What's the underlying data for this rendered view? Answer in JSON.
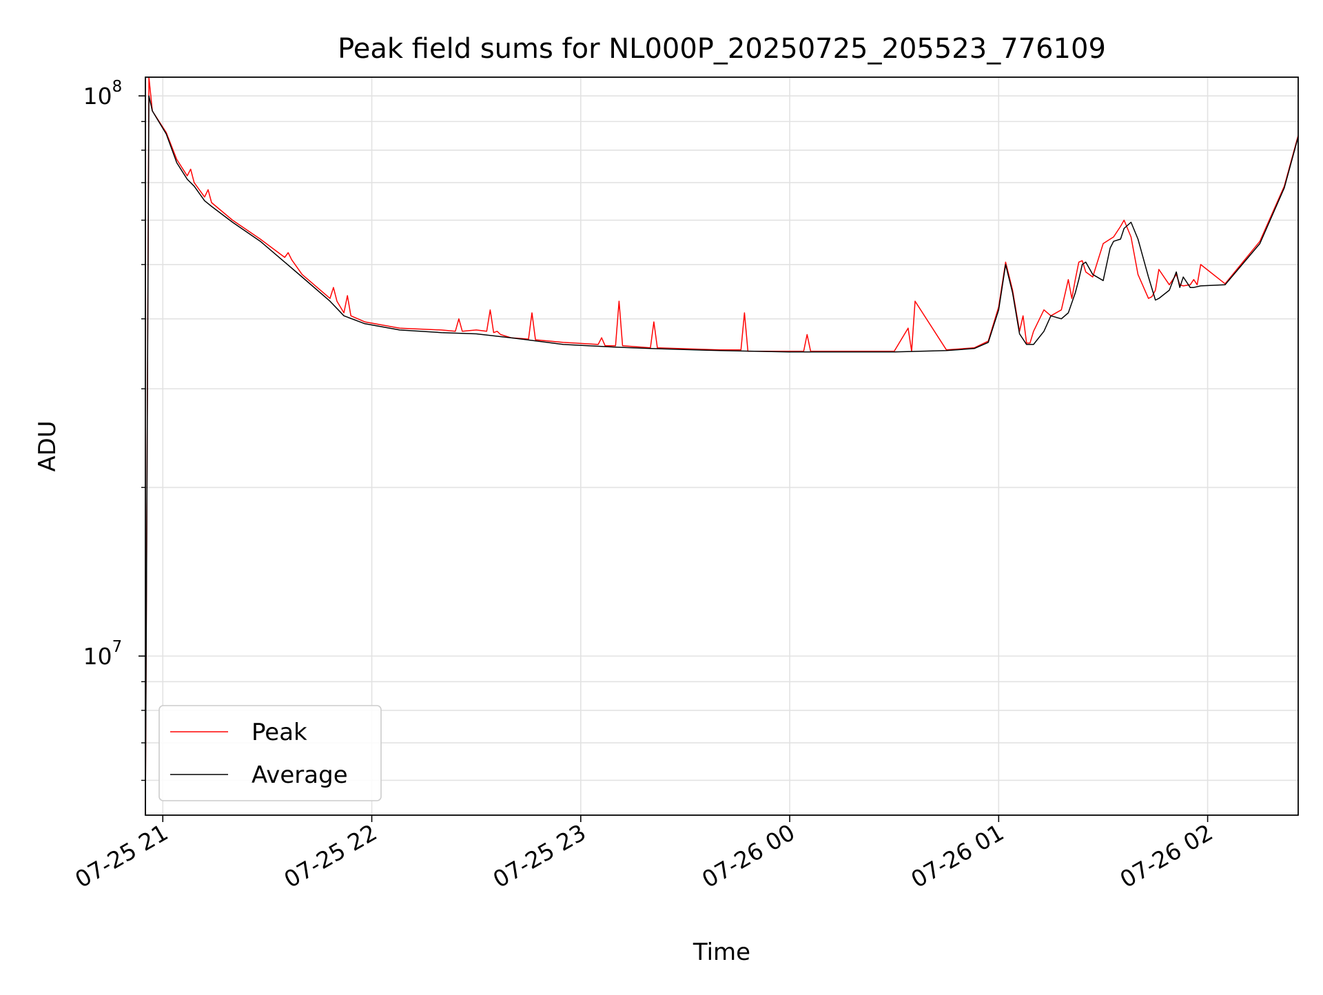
{
  "chart_data": {
    "type": "line",
    "title": "Peak field sums for NL000P_20250725_205523_776109",
    "xlabel": "Time",
    "ylabel": "ADU",
    "yscale": "log",
    "ylim": [
      5200000,
      108000000
    ],
    "xlim": [
      "2025-07-25 20:55",
      "2025-07-26 02:26"
    ],
    "grid": true,
    "legend_position": "lower-left",
    "x_ticks": [
      {
        "x": "2025-07-25 21:00",
        "label": "07-25 21"
      },
      {
        "x": "2025-07-25 22:00",
        "label": "07-25 22"
      },
      {
        "x": "2025-07-25 23:00",
        "label": "07-25 23"
      },
      {
        "x": "2025-07-26 00:00",
        "label": "07-26 00"
      },
      {
        "x": "2025-07-26 01:00",
        "label": "07-26 01"
      },
      {
        "x": "2025-07-26 02:00",
        "label": "07-26 02"
      }
    ],
    "y_ticks": [
      {
        "value": 10000000,
        "base": "10",
        "exp": "7"
      },
      {
        "value": 100000000,
        "base": "10",
        "exp": "8"
      }
    ],
    "series": [
      {
        "name": "Peak",
        "color": "#ff0000",
        "x": [
          "2025-07-25 20:55",
          "2025-07-25 20:56",
          "2025-07-25 20:57",
          "2025-07-25 21:01",
          "2025-07-25 21:04",
          "2025-07-25 21:07",
          "2025-07-25 21:08",
          "2025-07-25 21:09",
          "2025-07-25 21:12",
          "2025-07-25 21:13",
          "2025-07-25 21:14",
          "2025-07-25 21:20",
          "2025-07-25 21:28",
          "2025-07-25 21:35",
          "2025-07-25 21:36",
          "2025-07-25 21:37",
          "2025-07-25 21:40",
          "2025-07-25 21:48",
          "2025-07-25 21:49",
          "2025-07-25 21:50",
          "2025-07-25 21:52",
          "2025-07-25 21:53",
          "2025-07-25 21:54",
          "2025-07-25 21:58",
          "2025-07-25 22:08",
          "2025-07-25 22:20",
          "2025-07-25 22:24",
          "2025-07-25 22:25",
          "2025-07-25 22:26",
          "2025-07-25 22:30",
          "2025-07-25 22:33",
          "2025-07-25 22:34",
          "2025-07-25 22:35",
          "2025-07-25 22:36",
          "2025-07-25 22:37",
          "2025-07-25 22:40",
          "2025-07-25 22:45",
          "2025-07-25 22:46",
          "2025-07-25 22:47",
          "2025-07-25 22:55",
          "2025-07-25 23:05",
          "2025-07-25 23:06",
          "2025-07-25 23:07",
          "2025-07-25 23:10",
          "2025-07-25 23:11",
          "2025-07-25 23:12",
          "2025-07-25 23:20",
          "2025-07-25 23:21",
          "2025-07-25 23:22",
          "2025-07-25 23:40",
          "2025-07-25 23:46",
          "2025-07-25 23:47",
          "2025-07-25 23:48",
          "2025-07-26 00:04",
          "2025-07-26 00:05",
          "2025-07-26 00:06",
          "2025-07-26 00:30",
          "2025-07-26 00:34",
          "2025-07-26 00:35",
          "2025-07-26 00:36",
          "2025-07-26 00:45",
          "2025-07-26 00:53",
          "2025-07-26 00:57",
          "2025-07-26 01:00",
          "2025-07-26 01:02",
          "2025-07-26 01:04",
          "2025-07-26 01:06",
          "2025-07-26 01:07",
          "2025-07-26 01:08",
          "2025-07-26 01:09",
          "2025-07-26 01:10",
          "2025-07-26 01:13",
          "2025-07-26 01:15",
          "2025-07-26 01:18",
          "2025-07-26 01:20",
          "2025-07-26 01:21",
          "2025-07-26 01:22",
          "2025-07-26 01:23",
          "2025-07-26 01:24",
          "2025-07-26 01:25",
          "2025-07-26 01:27",
          "2025-07-26 01:30",
          "2025-07-26 01:32",
          "2025-07-26 01:33",
          "2025-07-26 01:35",
          "2025-07-26 01:36",
          "2025-07-26 01:38",
          "2025-07-26 01:40",
          "2025-07-26 01:43",
          "2025-07-26 01:44",
          "2025-07-26 01:45",
          "2025-07-26 01:46",
          "2025-07-26 01:49",
          "2025-07-26 01:51",
          "2025-07-26 01:52",
          "2025-07-26 01:53",
          "2025-07-26 01:55",
          "2025-07-26 01:56",
          "2025-07-26 01:57",
          "2025-07-26 01:58",
          "2025-07-26 02:05",
          "2025-07-26 02:15",
          "2025-07-26 02:22",
          "2025-07-26 02:26"
        ],
        "y": [
          5200000,
          108000000,
          94000000,
          86000000,
          77000000,
          72000000,
          74000000,
          70000000,
          66000000,
          68000000,
          64500000,
          60000000,
          55500000,
          51500000,
          52500000,
          51000000,
          48000000,
          43500000,
          45500000,
          43000000,
          41000000,
          44000000,
          40500000,
          39500000,
          38500000,
          38200000,
          38000000,
          40000000,
          38000000,
          38200000,
          38000000,
          41500000,
          37800000,
          38000000,
          37500000,
          37000000,
          36800000,
          41000000,
          36700000,
          36300000,
          36000000,
          37000000,
          35800000,
          35800000,
          43000000,
          35800000,
          35500000,
          39500000,
          35500000,
          35200000,
          35200000,
          41000000,
          35000000,
          35000000,
          37500000,
          35000000,
          35000000,
          38500000,
          35000000,
          43000000,
          35200000,
          35500000,
          36500000,
          42000000,
          50500000,
          45000000,
          38000000,
          40500000,
          36200000,
          36200000,
          38000000,
          41500000,
          40500000,
          41500000,
          47000000,
          43500000,
          47000000,
          50500000,
          50800000,
          48500000,
          47500000,
          54500000,
          55500000,
          56000000,
          58500000,
          60000000,
          56000000,
          48000000,
          43500000,
          43800000,
          45000000,
          49000000,
          46000000,
          48000000,
          46000000,
          45800000,
          46000000,
          47000000,
          46000000,
          50000000,
          46200000,
          55000000,
          69000000,
          85000000
        ]
      },
      {
        "name": "Average",
        "color": "#000000",
        "x": [
          "2025-07-25 20:55",
          "2025-07-25 20:56",
          "2025-07-25 20:57",
          "2025-07-25 21:01",
          "2025-07-25 21:04",
          "2025-07-25 21:07",
          "2025-07-25 21:09",
          "2025-07-25 21:12",
          "2025-07-25 21:14",
          "2025-07-25 21:20",
          "2025-07-25 21:28",
          "2025-07-25 21:35",
          "2025-07-25 21:40",
          "2025-07-25 21:48",
          "2025-07-25 21:52",
          "2025-07-25 21:58",
          "2025-07-25 22:08",
          "2025-07-25 22:20",
          "2025-07-25 22:30",
          "2025-07-25 22:40",
          "2025-07-25 22:55",
          "2025-07-25 23:10",
          "2025-07-25 23:20",
          "2025-07-25 23:40",
          "2025-07-26 00:00",
          "2025-07-26 00:30",
          "2025-07-26 00:45",
          "2025-07-26 00:53",
          "2025-07-26 00:57",
          "2025-07-26 01:00",
          "2025-07-26 01:02",
          "2025-07-26 01:04",
          "2025-07-26 01:06",
          "2025-07-26 01:08",
          "2025-07-26 01:10",
          "2025-07-26 01:13",
          "2025-07-26 01:15",
          "2025-07-26 01:18",
          "2025-07-26 01:20",
          "2025-07-26 01:22",
          "2025-07-26 01:23",
          "2025-07-26 01:24",
          "2025-07-26 01:25",
          "2025-07-26 01:27",
          "2025-07-26 01:30",
          "2025-07-26 01:32",
          "2025-07-26 01:33",
          "2025-07-26 01:35",
          "2025-07-26 01:36",
          "2025-07-26 01:38",
          "2025-07-26 01:40",
          "2025-07-26 01:43",
          "2025-07-26 01:45",
          "2025-07-26 01:46",
          "2025-07-26 01:49",
          "2025-07-26 01:51",
          "2025-07-26 01:52",
          "2025-07-26 01:53",
          "2025-07-26 01:55",
          "2025-07-26 01:56",
          "2025-07-26 01:58",
          "2025-07-26 02:05",
          "2025-07-26 02:15",
          "2025-07-26 02:22",
          "2025-07-26 02:26"
        ],
        "y": [
          5200000,
          100000000,
          94000000,
          85500000,
          76000000,
          71000000,
          69000000,
          65000000,
          63500000,
          59500000,
          55000000,
          50500000,
          47500000,
          43000000,
          40500000,
          39200000,
          38200000,
          37800000,
          37600000,
          37000000,
          36000000,
          35600000,
          35400000,
          35100000,
          34900000,
          34900000,
          35100000,
          35400000,
          36300000,
          41500000,
          50000000,
          44500000,
          37600000,
          36000000,
          36000000,
          38000000,
          40500000,
          40000000,
          41000000,
          44500000,
          47000000,
          50000000,
          50500000,
          48000000,
          46800000,
          53500000,
          55000000,
          55500000,
          58000000,
          59500000,
          55500000,
          47500000,
          43200000,
          43500000,
          45000000,
          48500000,
          45500000,
          47500000,
          45500000,
          45500000,
          45800000,
          46000000,
          54500000,
          68500000,
          84500000
        ]
      }
    ]
  }
}
